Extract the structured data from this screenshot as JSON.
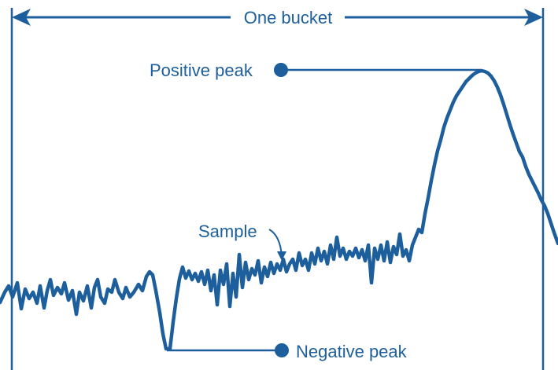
{
  "labels": {
    "bucket": "One bucket",
    "positive_peak": "Positive peak",
    "sample": "Sample",
    "negative_peak": "Negative peak"
  },
  "colors": {
    "primary": "#1d5f9c",
    "background": "#ffffff"
  }
}
